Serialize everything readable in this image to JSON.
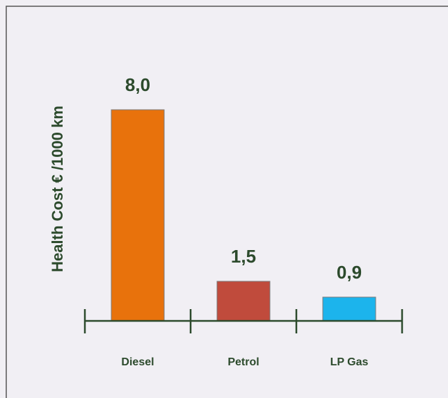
{
  "chart_data": {
    "type": "bar",
    "ylabel": "Health Cost € /1000 km",
    "categories": [
      "Diesel",
      "Petrol",
      "LP Gas"
    ],
    "values": [
      8.0,
      1.5,
      0.9
    ],
    "value_labels": [
      "8,0",
      "1,5",
      "0,9"
    ],
    "colors": [
      "#e8720c",
      "#c04b3c",
      "#1cb4ec"
    ],
    "ylim": [
      0,
      8
    ]
  }
}
